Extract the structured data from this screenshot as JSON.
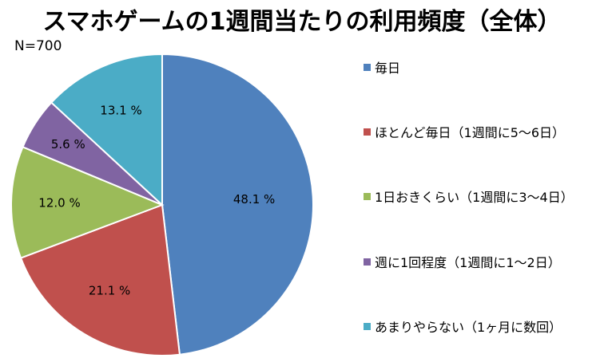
{
  "chart_data": {
    "type": "pie",
    "title": "スマホゲームの1週間当たりの利用頻度（全体）",
    "subtitle": "N=700",
    "categories": [
      "毎日",
      "ほとんど毎日（1週間に5～6日）",
      "1日おきくらい（1週間に3～4日）",
      "週に1回程度（1週間に1～2日）",
      "あまりやらない（1ヶ月に数回）"
    ],
    "values": [
      48.1,
      21.1,
      12.0,
      5.6,
      13.1
    ],
    "data_labels": [
      "48.1 %",
      "21.1 %",
      "12.0 %",
      "5.6 %",
      "13.1 %"
    ],
    "colors": [
      "#4f81bd",
      "#c0504d",
      "#9bbb59",
      "#8064a2",
      "#4bacc6"
    ],
    "legend_position": "right",
    "start_angle": "top",
    "direction": "clockwise"
  }
}
